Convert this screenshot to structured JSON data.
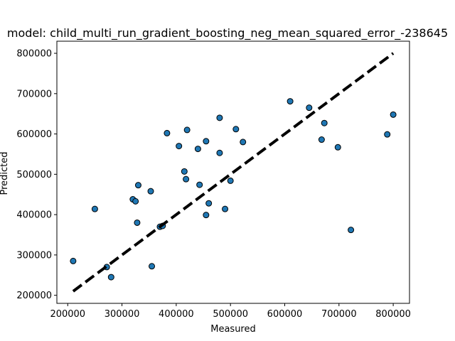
{
  "chart_data": {
    "type": "scatter",
    "title": "model: child_multi_run_gradient_boosting_neg_mean_squared_error_-238645",
    "xlabel": "Measured",
    "ylabel": "Predicted",
    "xlim": [
      180000,
      830000
    ],
    "ylim": [
      180000,
      830000
    ],
    "xticks": [
      200000,
      300000,
      400000,
      500000,
      600000,
      700000,
      800000
    ],
    "yticks": [
      200000,
      300000,
      400000,
      500000,
      600000,
      700000,
      800000
    ],
    "xtick_labels": [
      "200000",
      "300000",
      "400000",
      "500000",
      "600000",
      "700000",
      "800000"
    ],
    "ytick_labels": [
      "200000",
      "300000",
      "400000",
      "500000",
      "600000",
      "700000",
      "800000"
    ],
    "grid": false,
    "point_color": "#1f77b4",
    "point_edge_color": "#000000",
    "reference_line": {
      "from": [
        210000,
        210000
      ],
      "to": [
        800000,
        800000
      ],
      "style": "dashed",
      "color": "#000000"
    },
    "points": [
      [
        210000,
        285000
      ],
      [
        250000,
        414000
      ],
      [
        272000,
        270000
      ],
      [
        280000,
        245000
      ],
      [
        320000,
        438000
      ],
      [
        325000,
        433000
      ],
      [
        328000,
        380000
      ],
      [
        330000,
        473000
      ],
      [
        353000,
        458000
      ],
      [
        355000,
        272000
      ],
      [
        370000,
        370000
      ],
      [
        375000,
        372000
      ],
      [
        383000,
        602000
      ],
      [
        405000,
        570000
      ],
      [
        415000,
        507000
      ],
      [
        418000,
        488000
      ],
      [
        420000,
        610000
      ],
      [
        440000,
        563000
      ],
      [
        443000,
        474000
      ],
      [
        455000,
        582000
      ],
      [
        455000,
        399000
      ],
      [
        460000,
        428000
      ],
      [
        480000,
        640000
      ],
      [
        480000,
        553000
      ],
      [
        490000,
        414000
      ],
      [
        500000,
        484000
      ],
      [
        510000,
        612000
      ],
      [
        523000,
        580000
      ],
      [
        610000,
        681000
      ],
      [
        645000,
        665000
      ],
      [
        668000,
        586000
      ],
      [
        673000,
        627000
      ],
      [
        698000,
        567000
      ],
      [
        722000,
        362000
      ],
      [
        789000,
        599000
      ],
      [
        800000,
        648000
      ]
    ]
  }
}
